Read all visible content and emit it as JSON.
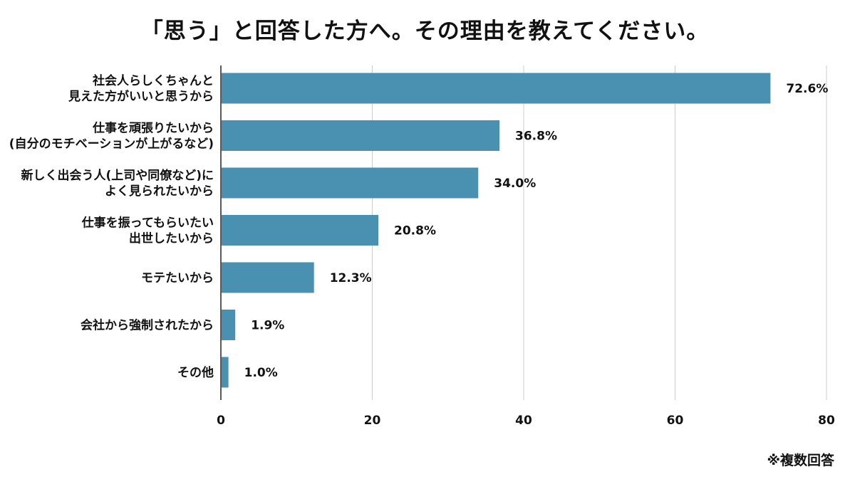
{
  "chart_data": {
    "type": "bar",
    "orientation": "horizontal",
    "title": "「思う」と回答した方へ。その理由を教えてください。",
    "categories": [
      [
        "社会人らしくちゃんと",
        "見えた方がいいと思うから"
      ],
      [
        "仕事を頑張りたいから",
        "(自分のモチベーションが上がるなど)"
      ],
      [
        "新しく出会う人(上司や同僚など)に",
        "よく見られたいから"
      ],
      [
        "仕事を振ってもらいたい",
        "出世したいから"
      ],
      [
        "モテたいから"
      ],
      [
        "会社から強制されたから"
      ],
      [
        "その他"
      ]
    ],
    "values": [
      72.6,
      36.8,
      34.0,
      20.8,
      12.3,
      1.9,
      1.0
    ],
    "value_labels": [
      "72.6%",
      "36.8%",
      "34.0%",
      "20.8%",
      "12.3%",
      "1.9%",
      "1.0%"
    ],
    "xlim": [
      0,
      80
    ],
    "xticks": [
      0,
      20,
      40,
      60,
      80
    ],
    "grid": true,
    "bar_color": "#4a90b0",
    "grid_color": "#cccccc",
    "note": "※複数回答"
  }
}
